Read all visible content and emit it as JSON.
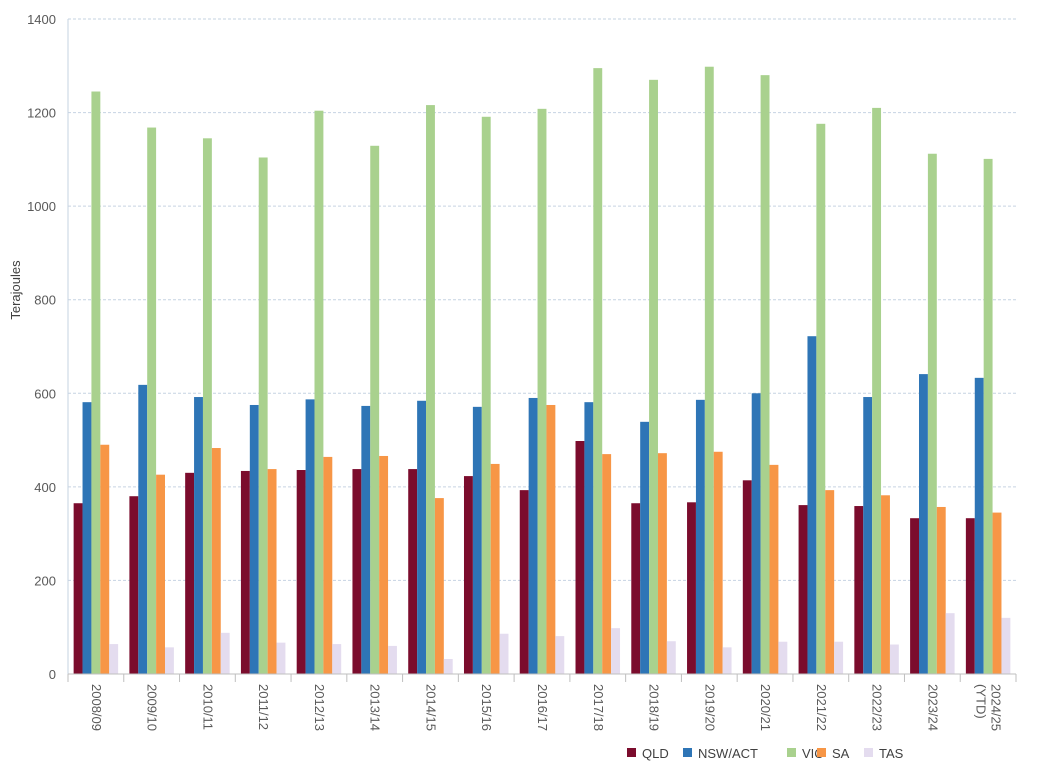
{
  "chart_data": {
    "type": "bar",
    "title": "",
    "xlabel": "",
    "ylabel": "Terajoules",
    "ylim": [
      0,
      1400
    ],
    "yticks": [
      0,
      200,
      400,
      600,
      800,
      1000,
      1200,
      1400
    ],
    "grid": true,
    "legend_position": "bottom-right",
    "categories": [
      "2008/09",
      "2009/10",
      "2010/11",
      "2011/12",
      "2012/13",
      "2013/14",
      "2014/15",
      "2015/16",
      "2016/17",
      "2017/18",
      "2018/19",
      "2019/20",
      "2020/21",
      "2021/22",
      "2022/23",
      "2023/24",
      "2024/25 (YTD)"
    ],
    "category_lines": [
      [
        "2008/09"
      ],
      [
        "2009/10"
      ],
      [
        "2010/11"
      ],
      [
        "2011/12"
      ],
      [
        "2012/13"
      ],
      [
        "2013/14"
      ],
      [
        "2014/15"
      ],
      [
        "2015/16"
      ],
      [
        "2016/17"
      ],
      [
        "2017/18"
      ],
      [
        "2018/19"
      ],
      [
        "2019/20"
      ],
      [
        "2020/21"
      ],
      [
        "2021/22"
      ],
      [
        "2022/23"
      ],
      [
        "2023/24"
      ],
      [
        "2024/25",
        "(YTD)"
      ]
    ],
    "series": [
      {
        "name": "QLD",
        "color": "#7b0c2d",
        "values": [
          365,
          380,
          430,
          434,
          436,
          438,
          438,
          423,
          393,
          498,
          365,
          367,
          414,
          361,
          359,
          333,
          333
        ]
      },
      {
        "name": "NSW/ACT",
        "color": "#2e75b6",
        "values": [
          581,
          618,
          592,
          575,
          587,
          573,
          584,
          571,
          590,
          581,
          539,
          586,
          600,
          722,
          592,
          641,
          633
        ]
      },
      {
        "name": "VIC",
        "color": "#a9d18e",
        "values": [
          1245,
          1168,
          1145,
          1104,
          1204,
          1129,
          1216,
          1191,
          1208,
          1295,
          1270,
          1298,
          1280,
          1176,
          1210,
          1112,
          1101
        ]
      },
      {
        "name": "SA",
        "color": "#f79646",
        "values": [
          490,
          426,
          483,
          438,
          464,
          466,
          376,
          449,
          575,
          470,
          472,
          475,
          447,
          393,
          382,
          357,
          345
        ]
      },
      {
        "name": "TAS",
        "color": "#e4dcef",
        "values": [
          64,
          57,
          88,
          67,
          64,
          60,
          32,
          86,
          81,
          98,
          70,
          57,
          69,
          69,
          63,
          130,
          120
        ]
      }
    ]
  }
}
